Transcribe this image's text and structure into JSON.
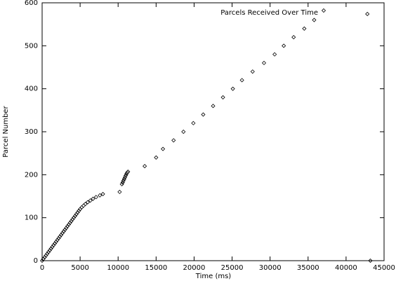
{
  "chart_data": {
    "type": "scatter",
    "x_label": "Time (ms)",
    "y_label": "Parcel Number",
    "x": [
      0,
      167,
      333,
      500,
      667,
      833,
      1000,
      1167,
      1333,
      1500,
      1667,
      1833,
      2000,
      2167,
      2333,
      2500,
      2667,
      2833,
      3000,
      3167,
      3333,
      3500,
      3667,
      3833,
      4000,
      4167,
      4333,
      4500,
      4667,
      4833,
      5000,
      5200,
      5450,
      5700,
      6000,
      6350,
      6700,
      7100,
      7600,
      8000,
      10200,
      10500,
      10600,
      10700,
      10800,
      10900,
      11000,
      11100,
      11200,
      11300,
      13500,
      15000,
      15900,
      17300,
      18600,
      19900,
      21200,
      22500,
      23800,
      25100,
      26300,
      27700,
      29200,
      30600,
      31800,
      33100,
      34500,
      35800,
      42800,
      43200
    ],
    "series": [
      {
        "name": "Parcels Received Over Time",
        "color": "#000000",
        "values": [
          0,
          4,
          8,
          12,
          16,
          20,
          24,
          28,
          32,
          36,
          40,
          44,
          48,
          52,
          56,
          60,
          64,
          68,
          72,
          76,
          80,
          84,
          88,
          92,
          96,
          100,
          104,
          108,
          112,
          116,
          120,
          124,
          128,
          132,
          136,
          140,
          144,
          148,
          152,
          155,
          160,
          178,
          182,
          186,
          190,
          194,
          198,
          202,
          205,
          207,
          220,
          240,
          260,
          280,
          300,
          320,
          340,
          360,
          380,
          400,
          420,
          440,
          460,
          480,
          500,
          520,
          540,
          560,
          574,
          0
        ]
      }
    ],
    "xlim": [
      0,
      45000
    ],
    "ylim": [
      0,
      600
    ],
    "xticks": [
      0,
      5000,
      10000,
      15000,
      20000,
      25000,
      30000,
      35000,
      40000,
      45000
    ],
    "yticks": [
      0,
      100,
      200,
      300,
      400,
      500,
      600
    ],
    "legend": "top-right"
  }
}
